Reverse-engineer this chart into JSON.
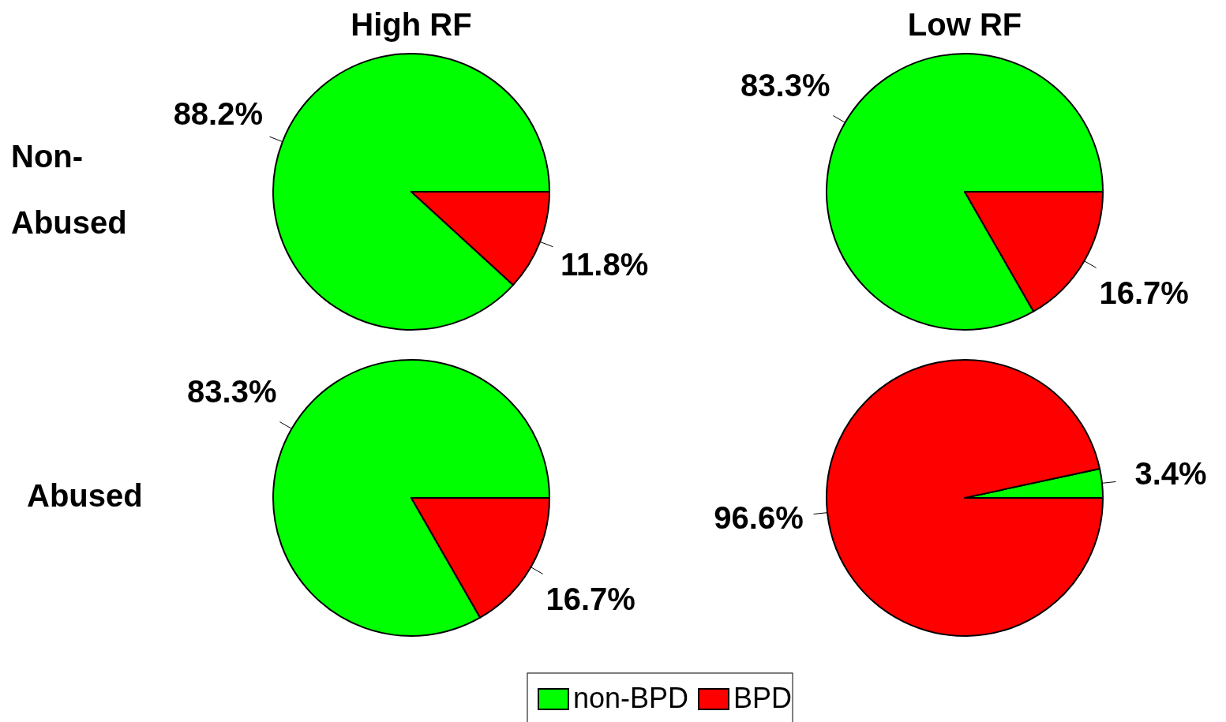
{
  "chart_data": [
    {
      "type": "pie",
      "title": "High RF",
      "ylabel": "Non-Abused",
      "categories": [
        "non-BPD",
        "BPD"
      ],
      "values": [
        88.2,
        11.8
      ],
      "colors": [
        "#00ff00",
        "#ff0000"
      ],
      "value_labels": [
        "88.2%",
        "11.8%"
      ],
      "legend": "bottom"
    },
    {
      "type": "pie",
      "title": "Low RF",
      "values": [
        83.3,
        16.7
      ],
      "colors": [
        "#00ff00",
        "#ff0000"
      ],
      "value_labels": [
        "83.3%",
        "16.7%"
      ]
    },
    {
      "type": "pie",
      "ylabel": "Abused",
      "values": [
        83.3,
        16.7
      ],
      "colors": [
        "#00ff00",
        "#ff0000"
      ],
      "value_labels": [
        "83.3%",
        "16.7%"
      ]
    },
    {
      "type": "pie",
      "values": [
        3.4,
        96.6
      ],
      "colors": [
        "#00ff00",
        "#ff0000"
      ],
      "value_labels": [
        "3.4%",
        "96.6%"
      ]
    }
  ]
}
